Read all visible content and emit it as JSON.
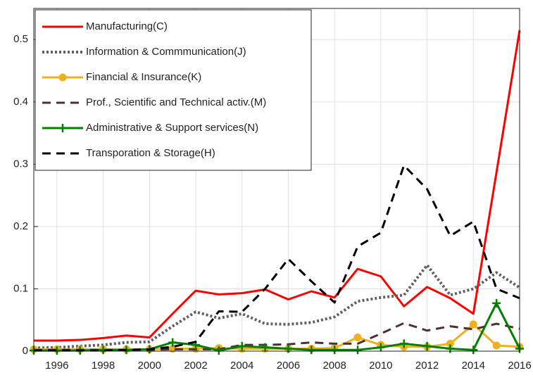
{
  "chart_data": {
    "type": "line",
    "x": [
      1995,
      1996,
      1997,
      1998,
      1999,
      2000,
      2001,
      2002,
      2003,
      2004,
      2005,
      2006,
      2007,
      2008,
      2009,
      2010,
      2011,
      2012,
      2013,
      2014,
      2015,
      2016
    ],
    "xlim": [
      1995,
      2016
    ],
    "xticks": [
      1996,
      1998,
      2000,
      2002,
      2004,
      2006,
      2008,
      2010,
      2012,
      2014,
      2016
    ],
    "ylim": [
      0,
      0.55
    ],
    "yticks": [
      0,
      0.1,
      0.2,
      0.3,
      0.4,
      0.5
    ],
    "grid": true,
    "legend": "upper left",
    "series": [
      {
        "name": "Manufacturing(C)",
        "color": "#ff0000",
        "dash": "solid",
        "marker": "none",
        "values": [
          0.017,
          0.017,
          0.018,
          0.021,
          0.025,
          0.022,
          0.06,
          0.097,
          0.091,
          0.093,
          0.099,
          0.083,
          0.096,
          0.086,
          0.132,
          0.12,
          0.072,
          0.103,
          0.085,
          0.06,
          0.287,
          0.515
        ]
      },
      {
        "name": "Information & Commmunication(J)",
        "color": "#606060",
        "dash": "dotted",
        "marker": "none",
        "values": [
          0.005,
          0.006,
          0.008,
          0.01,
          0.014,
          0.015,
          0.04,
          0.063,
          0.053,
          0.06,
          0.044,
          0.043,
          0.046,
          0.055,
          0.08,
          0.086,
          0.09,
          0.138,
          0.09,
          0.1,
          0.126,
          0.102
        ]
      },
      {
        "name": "Financial & Insurance(K)",
        "color": "#edb120",
        "dash": "solid",
        "marker": "circle",
        "values": [
          0.003,
          0.003,
          0.003,
          0.003,
          0.003,
          0.003,
          0.004,
          0.004,
          0.005,
          0.004,
          0.004,
          0.004,
          0.004,
          0.005,
          0.022,
          0.01,
          0.007,
          0.007,
          0.012,
          0.043,
          0.009,
          0.007
        ]
      },
      {
        "name": "Prof., Scientific and Technical activ.(M)",
        "color": "#4d3030",
        "dash": "dashed",
        "marker": "none",
        "values": [
          0.002,
          0.002,
          0.002,
          0.002,
          0.002,
          0.002,
          0.003,
          0.003,
          0.003,
          0.01,
          0.01,
          0.011,
          0.014,
          0.012,
          0.012,
          0.028,
          0.045,
          0.033,
          0.04,
          0.035,
          0.044,
          0.036
        ]
      },
      {
        "name": "Administrative & Support services(N)",
        "color": "#008000",
        "dash": "solid",
        "marker": "plus",
        "values": [
          0.001,
          0.001,
          0.001,
          0.002,
          0.002,
          0.003,
          0.014,
          0.01,
          0.001,
          0.008,
          0.006,
          0.004,
          0.002,
          0.002,
          0.002,
          0.006,
          0.012,
          0.008,
          0.004,
          0.002,
          0.077,
          0.004
        ]
      },
      {
        "name": "Transporation & Storage(H)",
        "color": "#000000",
        "dash": "dashed",
        "marker": "none",
        "values": [
          0.001,
          0.001,
          0.001,
          0.001,
          0.002,
          0.003,
          0.007,
          0.015,
          0.064,
          0.063,
          0.1,
          0.148,
          0.112,
          0.078,
          0.168,
          0.19,
          0.298,
          0.26,
          0.185,
          0.208,
          0.1,
          0.085
        ]
      }
    ]
  }
}
